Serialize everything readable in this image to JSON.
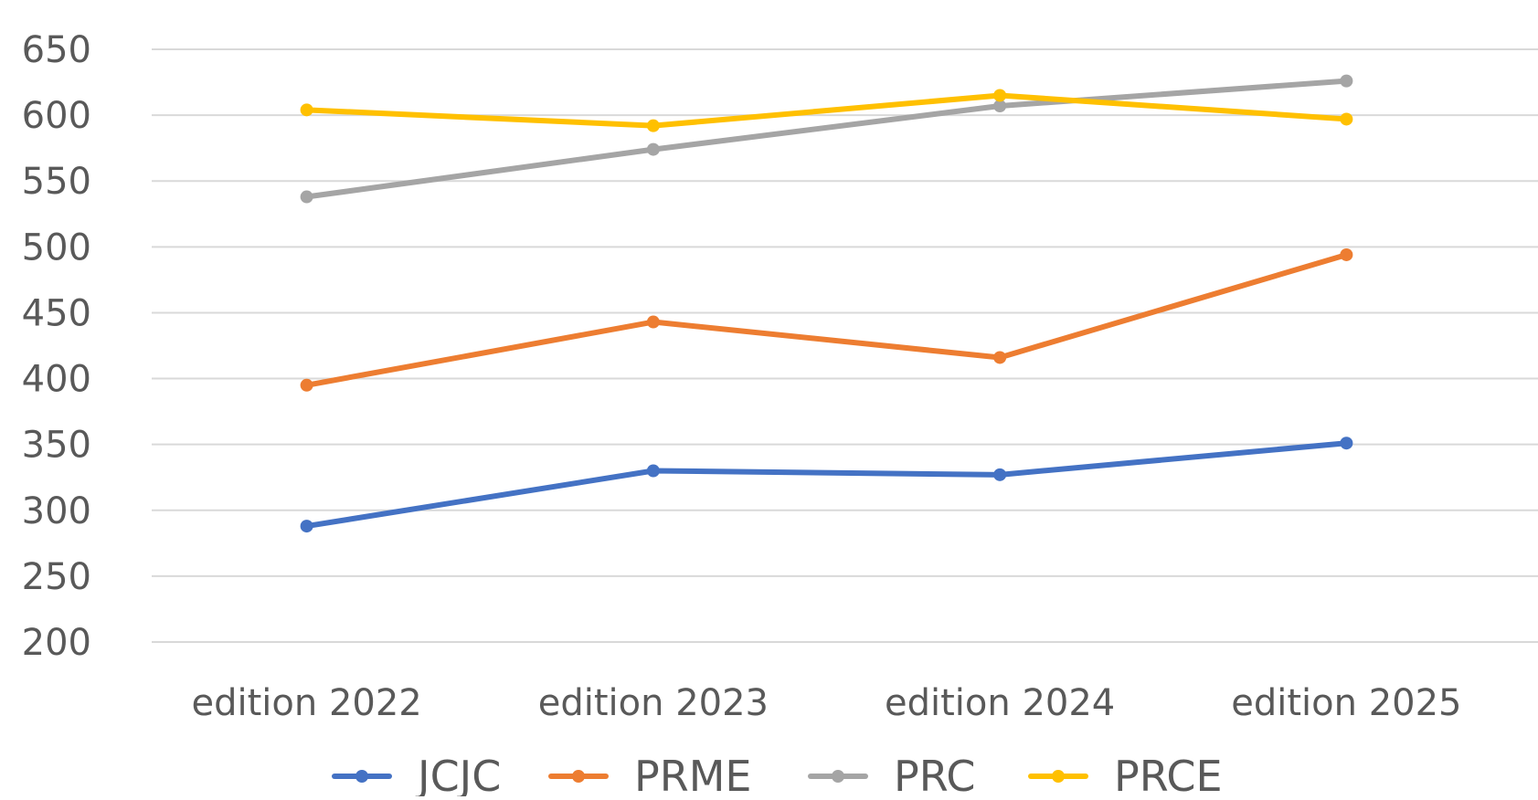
{
  "chart_data": {
    "type": "line",
    "title": "",
    "xlabel": "",
    "ylabel": "",
    "categories": [
      "edition 2022",
      "edition 2023",
      "edition 2024",
      "edition 2025"
    ],
    "y_ticks": [
      "200",
      "250",
      "300",
      "350",
      "400",
      "450",
      "500",
      "550",
      "600",
      "650"
    ],
    "ylim": [
      200,
      650
    ],
    "grid": true,
    "legend_position": "bottom",
    "series": [
      {
        "name": "JCJC",
        "color": "#4472C4",
        "values": [
          288,
          330,
          327,
          351
        ]
      },
      {
        "name": "PRME",
        "color": "#ED7D31",
        "values": [
          395,
          443,
          416,
          494
        ]
      },
      {
        "name": "PRC",
        "color": "#A5A5A5",
        "values": [
          538,
          574,
          607,
          626
        ]
      },
      {
        "name": "PRCE",
        "color": "#FFC000",
        "values": [
          604,
          592,
          615,
          597
        ]
      }
    ]
  }
}
